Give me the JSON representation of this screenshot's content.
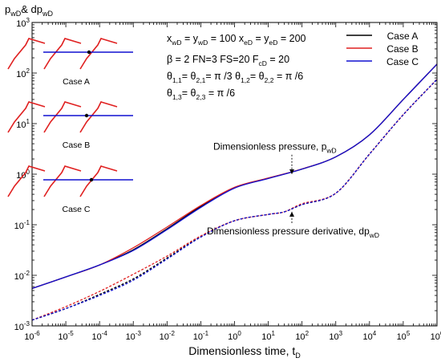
{
  "chart_data": {
    "type": "line",
    "xscale": "log",
    "yscale": "log",
    "xlim": [
      1e-06,
      1000000
    ],
    "ylim": [
      0.001,
      1000
    ],
    "xlabel": {
      "main": "Dimensionless time, t",
      "sub": "D"
    },
    "ylabel": {
      "p1": "p",
      "s1": "wD",
      "mid": "& dp",
      "s2": "wD"
    },
    "x_ticks": [
      {
        "v": 1e-06,
        "b": "10",
        "e": "-6"
      },
      {
        "v": 1e-05,
        "b": "10",
        "e": "-5"
      },
      {
        "v": 0.0001,
        "b": "10",
        "e": "-4"
      },
      {
        "v": 0.001,
        "b": "10",
        "e": "-3"
      },
      {
        "v": 0.01,
        "b": "10",
        "e": "-2"
      },
      {
        "v": 0.1,
        "b": "10",
        "e": "-1"
      },
      {
        "v": 1,
        "b": "10",
        "e": "0"
      },
      {
        "v": 10,
        "b": "10",
        "e": "1"
      },
      {
        "v": 100,
        "b": "10",
        "e": "2"
      },
      {
        "v": 1000,
        "b": "10",
        "e": "3"
      },
      {
        "v": 10000,
        "b": "10",
        "e": "4"
      },
      {
        "v": 100000,
        "b": "10",
        "e": "5"
      },
      {
        "v": 1000000,
        "b": "10",
        "e": "6"
      }
    ],
    "y_ticks": [
      {
        "v": 0.001,
        "b": "10",
        "e": "-3"
      },
      {
        "v": 0.01,
        "b": "10",
        "e": "-2"
      },
      {
        "v": 0.1,
        "b": "10",
        "e": "-1"
      },
      {
        "v": 1,
        "b": "10",
        "e": "0"
      },
      {
        "v": 10,
        "b": "10",
        "e": "1"
      },
      {
        "v": 100,
        "b": "10",
        "e": "2"
      },
      {
        "v": 1000,
        "b": "10",
        "e": "3"
      }
    ],
    "legend_position": "top-right",
    "series": [
      {
        "name": "Case A",
        "color": "#000000",
        "style": "solid",
        "group": "pressure",
        "x": [
          1e-06,
          1e-05,
          0.0001,
          0.001,
          0.01,
          0.1,
          1,
          10,
          100,
          1000,
          10000,
          100000,
          1000000
        ],
        "y": [
          0.0055,
          0.0093,
          0.016,
          0.032,
          0.083,
          0.23,
          0.54,
          0.83,
          1.26,
          2.2,
          6.0,
          30,
          150
        ]
      },
      {
        "name": "Case B",
        "color": "#e02020",
        "style": "solid",
        "group": "pressure",
        "x": [
          1e-06,
          1e-05,
          0.0001,
          0.001,
          0.01,
          0.1,
          1,
          10,
          100,
          1000,
          10000,
          100000,
          1000000
        ],
        "y": [
          0.0055,
          0.0093,
          0.016,
          0.035,
          0.09,
          0.24,
          0.55,
          0.84,
          1.27,
          2.2,
          6.0,
          30,
          150
        ]
      },
      {
        "name": "Case C",
        "color": "#1010d0",
        "style": "solid",
        "group": "pressure",
        "x": [
          1e-06,
          1e-05,
          0.0001,
          0.001,
          0.01,
          0.1,
          1,
          10,
          100,
          1000,
          10000,
          100000,
          1000000
        ],
        "y": [
          0.0055,
          0.0093,
          0.016,
          0.031,
          0.08,
          0.22,
          0.53,
          0.82,
          1.26,
          2.2,
          6.0,
          30,
          150
        ]
      },
      {
        "name": "Case A",
        "color": "#000000",
        "style": "dashed",
        "group": "derivative",
        "x": [
          1e-06,
          1e-05,
          0.0001,
          0.001,
          0.01,
          0.1,
          1,
          10,
          30,
          100,
          1000,
          10000,
          100000,
          1000000
        ],
        "y": [
          0.0013,
          0.0022,
          0.0042,
          0.0085,
          0.022,
          0.058,
          0.12,
          0.16,
          0.18,
          0.25,
          0.42,
          2.5,
          15,
          75
        ]
      },
      {
        "name": "Case B",
        "color": "#e02020",
        "style": "dashed",
        "group": "derivative",
        "x": [
          1e-06,
          1e-05,
          0.0001,
          0.001,
          0.01,
          0.1,
          1,
          10,
          30,
          100,
          1000,
          10000,
          100000,
          1000000
        ],
        "y": [
          0.0013,
          0.0024,
          0.0048,
          0.0105,
          0.024,
          0.06,
          0.12,
          0.16,
          0.18,
          0.26,
          0.42,
          2.5,
          15,
          75
        ]
      },
      {
        "name": "Case C",
        "color": "#1010d0",
        "style": "dashed",
        "group": "derivative",
        "x": [
          1e-06,
          1e-05,
          0.0001,
          0.001,
          0.01,
          0.1,
          1,
          10,
          30,
          100,
          1000,
          10000,
          100000,
          1000000
        ],
        "y": [
          0.0013,
          0.0022,
          0.004,
          0.008,
          0.021,
          0.057,
          0.12,
          0.16,
          0.18,
          0.25,
          0.42,
          2.5,
          15,
          75
        ]
      }
    ],
    "annotations": {
      "pressure": {
        "text": "Dimensionless pressure, p",
        "sub": "wD",
        "x": 50,
        "y": 1.0,
        "text_y": 3.5
      },
      "derivative": {
        "text": "Dimensionless pressure derivative, dp",
        "sub": "wD",
        "x": 50,
        "y": 0.18,
        "text_y": 0.075
      }
    },
    "params": [
      [
        "x",
        "wD",
        " = y",
        "wD",
        " = 100   x",
        "eD",
        " = y",
        "eD",
        " = 200"
      ],
      [
        "β = 2    FN=3    FS=20    F",
        "cD",
        " = 20"
      ],
      [
        "θ",
        "1,1",
        "= θ",
        "2,1",
        "= π /3     θ",
        "1,2",
        "= θ",
        "2,2",
        " = π /6"
      ],
      [
        "θ",
        "1,3",
        "= θ",
        "2,3",
        " = π /6"
      ]
    ],
    "schematics": [
      {
        "label": "Case A",
        "dot_offset": 0
      },
      {
        "label": "Case B",
        "dot_offset": -3
      },
      {
        "label": "Case C",
        "dot_offset": 3
      }
    ]
  }
}
